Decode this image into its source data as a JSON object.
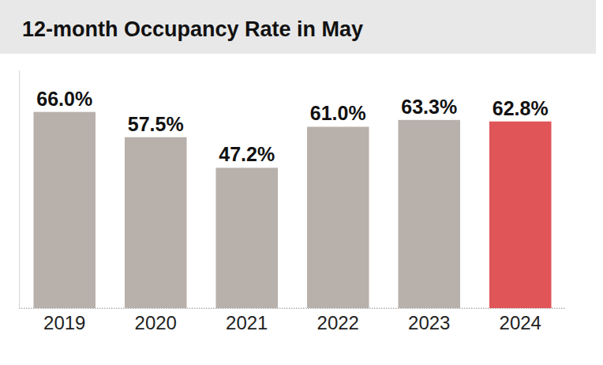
{
  "chart_data": {
    "type": "bar",
    "title": "12-month Occupancy Rate in May",
    "categories": [
      "2019",
      "2020",
      "2021",
      "2022",
      "2023",
      "2024"
    ],
    "values": [
      66.0,
      57.5,
      47.2,
      61.0,
      63.3,
      62.8
    ],
    "value_labels": [
      "66.0%",
      "57.5%",
      "47.2%",
      "61.0%",
      "63.3%",
      "62.8%"
    ],
    "colors": [
      "#b8b0ab",
      "#b8b0ab",
      "#b8b0ab",
      "#b8b0ab",
      "#b8b0ab",
      "#e05558"
    ],
    "ylim": [
      0,
      80
    ],
    "yticks": [
      0
    ],
    "grid": true,
    "data_labels": true,
    "tick_labels": "x"
  }
}
